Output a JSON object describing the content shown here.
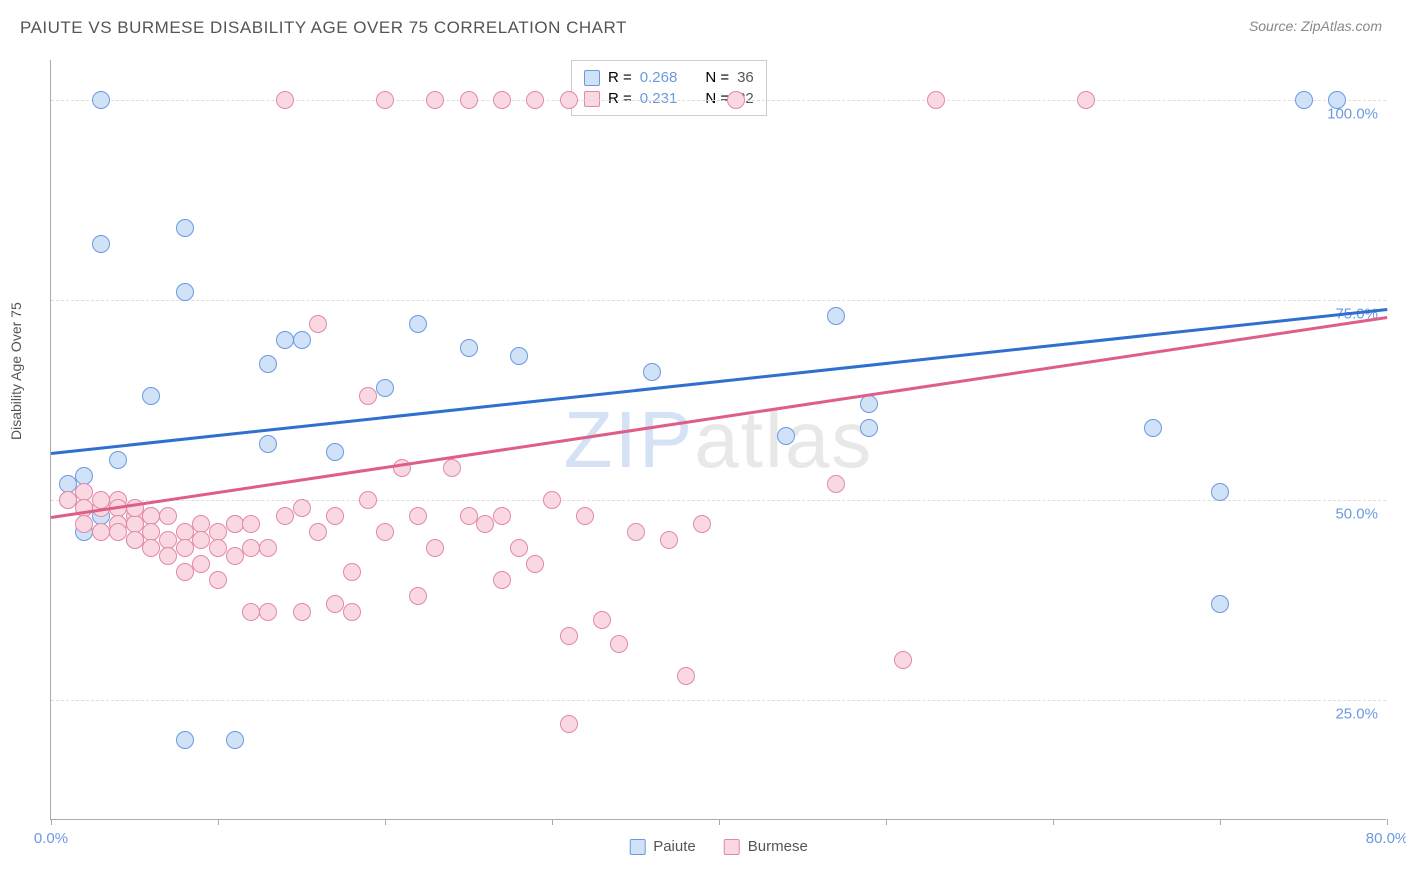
{
  "chart": {
    "type": "scatter",
    "title": "PAIUTE VS BURMESE DISABILITY AGE OVER 75 CORRELATION CHART",
    "source": "Source: ZipAtlas.com",
    "ylabel": "Disability Age Over 75",
    "watermark_zip": "ZIP",
    "watermark_atlas": "atlas",
    "background_color": "#ffffff",
    "grid_color": "#dddddd",
    "axis_color": "#aaaaaa",
    "tick_label_color": "#6b9ae0",
    "text_color": "#555555",
    "marker_radius": 9,
    "marker_stroke_width": 1.5,
    "xlim": [
      0,
      80
    ],
    "ylim": [
      10,
      105
    ],
    "x_ticks": [
      0,
      10,
      20,
      30,
      40,
      50,
      60,
      70,
      80
    ],
    "x_tick_labels": {
      "0": "0.0%",
      "80": "80.0%"
    },
    "y_ticks": [
      25,
      50,
      75,
      100
    ],
    "y_tick_labels": {
      "25": "25.0%",
      "50": "50.0%",
      "75": "75.0%",
      "100": "100.0%"
    },
    "series": [
      {
        "name": "Paiute",
        "fill": "#cfe2f8",
        "stroke": "#6b9ae0",
        "trend_color": "#2f6fd0",
        "trend_width": 2.5,
        "trend": {
          "x1": 0,
          "y1": 56,
          "x2": 80,
          "y2": 74
        },
        "R_label": "R = ",
        "R_value": "0.268",
        "N_label": "N = ",
        "N_value": "36",
        "points": [
          [
            3,
            100
          ],
          [
            3,
            82
          ],
          [
            8,
            84
          ],
          [
            8,
            76
          ],
          [
            6,
            63
          ],
          [
            8,
            20
          ],
          [
            11,
            20
          ],
          [
            4,
            55
          ],
          [
            2,
            53
          ],
          [
            1,
            52
          ],
          [
            1,
            50
          ],
          [
            3,
            48
          ],
          [
            4,
            47
          ],
          [
            6,
            48
          ],
          [
            14,
            70
          ],
          [
            15,
            70
          ],
          [
            13,
            67
          ],
          [
            13,
            57
          ],
          [
            22,
            72
          ],
          [
            20,
            64
          ],
          [
            17,
            56
          ],
          [
            25,
            69
          ],
          [
            28,
            68
          ],
          [
            36,
            66
          ],
          [
            47,
            73
          ],
          [
            49,
            62
          ],
          [
            49,
            59
          ],
          [
            44,
            58
          ],
          [
            66,
            59
          ],
          [
            70,
            51
          ],
          [
            75,
            100
          ],
          [
            77,
            100
          ],
          [
            70,
            37
          ],
          [
            2,
            46
          ],
          [
            5,
            45
          ],
          [
            11,
            47
          ]
        ]
      },
      {
        "name": "Burmese",
        "fill": "#f9d8e2",
        "stroke": "#e389a6",
        "trend_color": "#de5e88",
        "trend_width": 2.5,
        "trend": {
          "x1": 0,
          "y1": 48,
          "x2": 80,
          "y2": 73
        },
        "R_label": "R = ",
        "R_value": "0.231",
        "N_label": "N = ",
        "N_value": "82",
        "points": [
          [
            1,
            50
          ],
          [
            2,
            51
          ],
          [
            2,
            49
          ],
          [
            2,
            47
          ],
          [
            3,
            49
          ],
          [
            3,
            50
          ],
          [
            3,
            46
          ],
          [
            4,
            50
          ],
          [
            4,
            49
          ],
          [
            4,
            47
          ],
          [
            4,
            46
          ],
          [
            5,
            48
          ],
          [
            5,
            47
          ],
          [
            5,
            49
          ],
          [
            5,
            45
          ],
          [
            6,
            48
          ],
          [
            6,
            46
          ],
          [
            6,
            44
          ],
          [
            7,
            48
          ],
          [
            7,
            45
          ],
          [
            7,
            43
          ],
          [
            8,
            46
          ],
          [
            8,
            44
          ],
          [
            8,
            41
          ],
          [
            9,
            47
          ],
          [
            9,
            45
          ],
          [
            9,
            42
          ],
          [
            10,
            46
          ],
          [
            10,
            44
          ],
          [
            10,
            40
          ],
          [
            11,
            47
          ],
          [
            11,
            43
          ],
          [
            12,
            47
          ],
          [
            12,
            44
          ],
          [
            12,
            36
          ],
          [
            13,
            44
          ],
          [
            13,
            36
          ],
          [
            14,
            48
          ],
          [
            15,
            49
          ],
          [
            15,
            36
          ],
          [
            16,
            72
          ],
          [
            16,
            46
          ],
          [
            17,
            48
          ],
          [
            17,
            37
          ],
          [
            18,
            41
          ],
          [
            18,
            36
          ],
          [
            19,
            50
          ],
          [
            19,
            63
          ],
          [
            20,
            46
          ],
          [
            21,
            54
          ],
          [
            22,
            48
          ],
          [
            22,
            38
          ],
          [
            23,
            44
          ],
          [
            24,
            54
          ],
          [
            25,
            48
          ],
          [
            26,
            47
          ],
          [
            27,
            48
          ],
          [
            27,
            40
          ],
          [
            28,
            44
          ],
          [
            29,
            42
          ],
          [
            30,
            50
          ],
          [
            31,
            22
          ],
          [
            31,
            33
          ],
          [
            32,
            48
          ],
          [
            33,
            35
          ],
          [
            34,
            32
          ],
          [
            35,
            46
          ],
          [
            37,
            45
          ],
          [
            38,
            28
          ],
          [
            39,
            47
          ],
          [
            41,
            100
          ],
          [
            47,
            52
          ],
          [
            51,
            30
          ],
          [
            53,
            100
          ],
          [
            20,
            100
          ],
          [
            23,
            100
          ],
          [
            25,
            100
          ],
          [
            27,
            100
          ],
          [
            29,
            100
          ],
          [
            31,
            100
          ],
          [
            62,
            100
          ],
          [
            14,
            100
          ]
        ]
      }
    ]
  }
}
